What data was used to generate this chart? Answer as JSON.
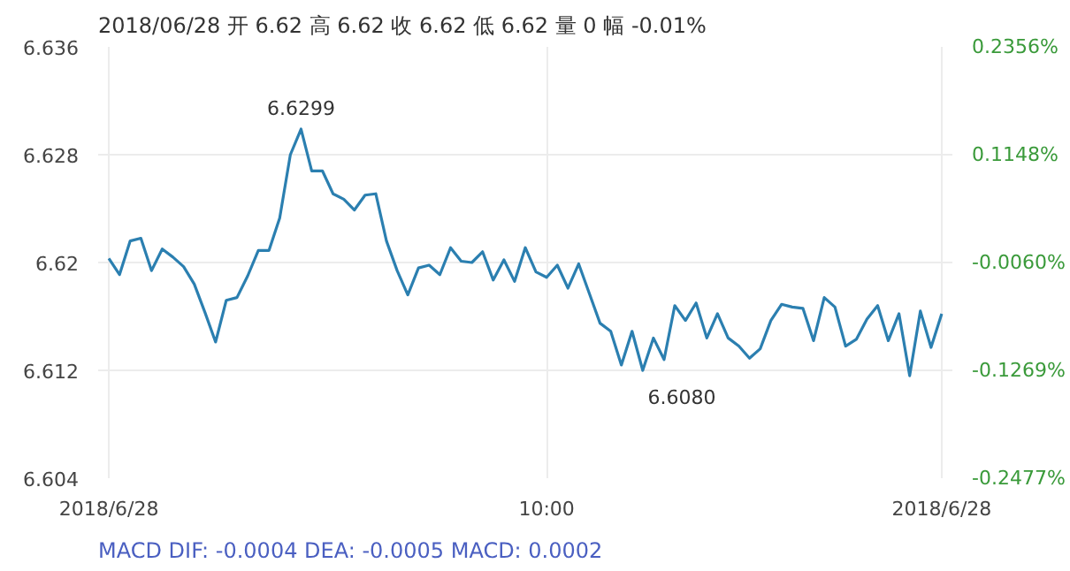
{
  "chart_data": {
    "type": "line",
    "title": "2018/06/28 开 6.62 高 6.62 收 6.62 低 6.62 量 0 幅 -0.01%",
    "categories": [
      "2018/6/28",
      null,
      null,
      null,
      null,
      null,
      null,
      null,
      null,
      null,
      null,
      null,
      null,
      null,
      null,
      null,
      null,
      null,
      null,
      null,
      null,
      null,
      null,
      null,
      null,
      null,
      null,
      null,
      null,
      null,
      null,
      null,
      null,
      null,
      null,
      null,
      null,
      null,
      null,
      null,
      null,
      "10:00",
      null,
      null,
      null,
      null,
      null,
      null,
      null,
      null,
      null,
      null,
      null,
      null,
      null,
      null,
      null,
      null,
      null,
      null,
      null,
      null,
      null,
      null,
      null,
      null,
      null,
      null,
      null,
      null,
      null,
      null,
      null,
      null,
      null,
      null,
      null,
      null,
      "2018/6/28"
    ],
    "series": [
      {
        "color": "#2b7fb0",
        "values": [
          6.6203,
          6.6191,
          6.6216,
          6.6218,
          6.6194,
          6.621,
          6.6204,
          6.6197,
          6.6184,
          6.6163,
          6.6141,
          6.6172,
          6.6174,
          6.619,
          6.6209,
          6.6209,
          6.6233,
          6.628,
          6.6299,
          6.6268,
          6.6268,
          6.6251,
          6.6247,
          6.6239,
          6.625,
          6.6251,
          6.6216,
          6.6194,
          6.6176,
          6.6196,
          6.6198,
          6.6191,
          6.6211,
          6.6201,
          6.62,
          6.6208,
          6.6187,
          6.6202,
          6.6186,
          6.6211,
          6.6193,
          6.6189,
          6.6198,
          6.6181,
          6.6199,
          6.6177,
          6.6155,
          6.6149,
          6.6124,
          6.6149,
          6.612,
          6.6144,
          6.6128,
          6.6168,
          6.6157,
          6.617,
          6.6144,
          6.6162,
          6.6144,
          6.6138,
          6.6129,
          6.6136,
          6.6157,
          6.6169,
          6.6167,
          6.6166,
          6.6142,
          6.6174,
          6.6167,
          6.6138,
          6.6143,
          6.6158,
          6.6168,
          6.6142,
          6.6162,
          6.6116,
          6.6164,
          6.6137,
          6.6162
        ]
      }
    ],
    "ylim": [
      6.604,
      6.636
    ],
    "yticks": [
      6.604,
      6.612,
      6.62,
      6.628,
      6.636
    ],
    "y2lim": [
      -0.2477,
      0.2356
    ],
    "y2ticks": [
      {
        "value": -0.2477,
        "label": "-0.2477%"
      },
      {
        "value": -0.1269,
        "label": "-0.1269%"
      },
      {
        "value": -0.006,
        "label": "-0.0060%"
      },
      {
        "value": 0.1148,
        "label": "0.1148%"
      },
      {
        "value": 0.2356,
        "label": "0.2356%"
      }
    ],
    "grid": true,
    "annotations": [
      {
        "text": "6.6299",
        "y": 6.6299
      },
      "6.6080",
      "MACD DIF: -0.0004 DEA: -0.0005 MACD: 0.0002"
    ]
  }
}
